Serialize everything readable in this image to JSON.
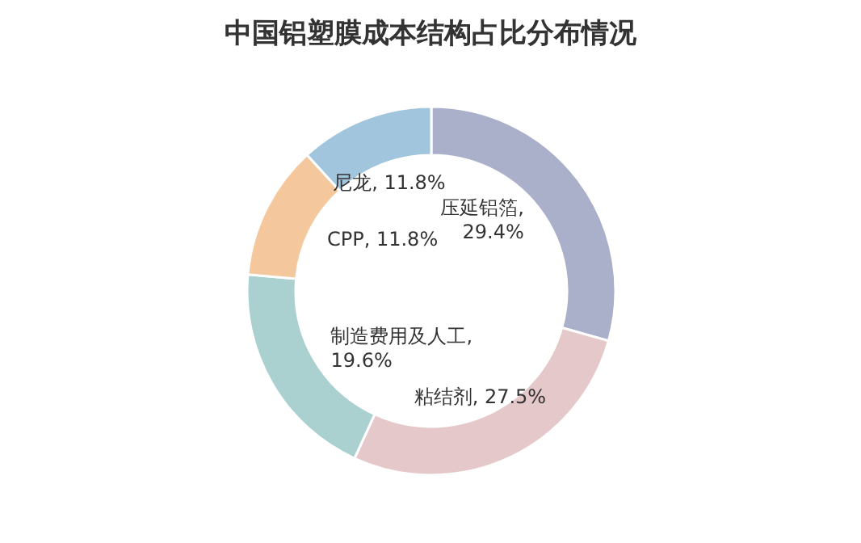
{
  "chart_data": {
    "type": "donut",
    "title": "中国铝塑膜成本结构占比分布情况",
    "categories": [
      "压延铝箔",
      "粘结剂",
      "制造费用及人工",
      "CPP",
      "尼龙"
    ],
    "values": [
      29.4,
      27.5,
      19.6,
      11.8,
      11.8
    ],
    "colors": [
      "#aab0c9",
      "#e5c9ca",
      "#aad1d0",
      "#f4c79c",
      "#a0c5dd"
    ],
    "value_labels": [
      ", 29.4%",
      ", 27.5%",
      ", 19.6%",
      ", 11.8%",
      ", 11.8%"
    ]
  }
}
